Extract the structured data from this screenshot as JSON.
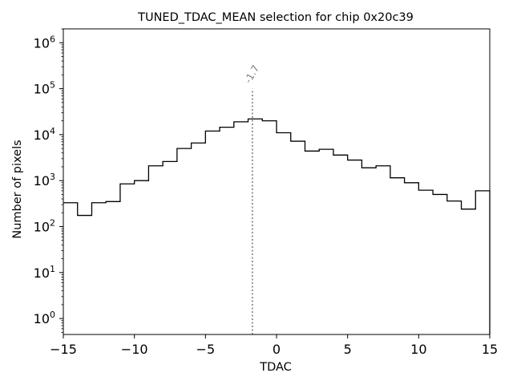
{
  "chart_data": {
    "type": "histogram",
    "title": "TUNED_TDAC_MEAN selection for chip 0x20c39",
    "xlabel": "TDAC",
    "ylabel": "Number of pixels",
    "xlim": [
      -15,
      15
    ],
    "yscale": "log",
    "ylim": [
      0.45,
      2000000
    ],
    "x_ticks": [
      -15,
      -10,
      -5,
      0,
      5,
      10,
      15
    ],
    "x_tick_labels": [
      "−15",
      "−10",
      "−5",
      "0",
      "5",
      "10",
      "15"
    ],
    "y_ticks": [
      1,
      10,
      100,
      1000,
      10000,
      100000,
      1000000
    ],
    "y_tick_labels": [
      {
        "base": "10",
        "exp": "0"
      },
      {
        "base": "10",
        "exp": "1"
      },
      {
        "base": "10",
        "exp": "2"
      },
      {
        "base": "10",
        "exp": "3"
      },
      {
        "base": "10",
        "exp": "4"
      },
      {
        "base": "10",
        "exp": "5"
      },
      {
        "base": "10",
        "exp": "6"
      }
    ],
    "bin_edges": [
      -15,
      -14,
      -13,
      -12,
      -11,
      -10,
      -9,
      -8,
      -7,
      -6,
      -5,
      -4,
      -3,
      -2,
      -1,
      0,
      1,
      2,
      3,
      4,
      5,
      6,
      7,
      8,
      9,
      10,
      11,
      12,
      13,
      14,
      15
    ],
    "counts": [
      330,
      175,
      330,
      350,
      850,
      1000,
      2100,
      2600,
      5000,
      6600,
      12000,
      14500,
      19000,
      22000,
      20000,
      11000,
      7200,
      4400,
      4800,
      3600,
      2800,
      1900,
      2100,
      1150,
      900,
      620,
      500,
      360,
      240,
      600
    ],
    "series_color": "#000000",
    "marker_line": {
      "x": -1.7,
      "y_top": 100000,
      "label": "-1.7",
      "color": "#808080",
      "style": "dotted"
    }
  }
}
